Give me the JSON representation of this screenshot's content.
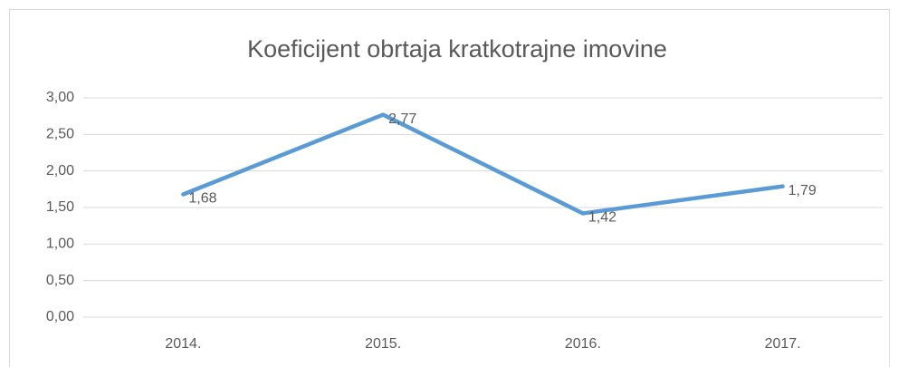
{
  "chart_data": {
    "type": "line",
    "title": "Koeficijent obrtaja kratkotrajne imovine",
    "categories": [
      "2014.",
      "2015.",
      "2016.",
      "2017."
    ],
    "series": [
      {
        "color": "#5b9bd5",
        "values": [
          1.68,
          2.77,
          1.42,
          1.79
        ],
        "value_labels": [
          "1,68",
          "2,77",
          "1,42",
          "1,79"
        ]
      }
    ],
    "ylim": [
      0,
      3
    ],
    "yticks": [
      {
        "value": 0,
        "label": "0,00"
      },
      {
        "value": 0.5,
        "label": "0,50"
      },
      {
        "value": 1,
        "label": "1,00"
      },
      {
        "value": 1.5,
        "label": "1,50"
      },
      {
        "value": 2,
        "label": "2,00"
      },
      {
        "value": 2.5,
        "label": "2,50"
      },
      {
        "value": 3,
        "label": "3,00"
      }
    ],
    "grid": true
  }
}
